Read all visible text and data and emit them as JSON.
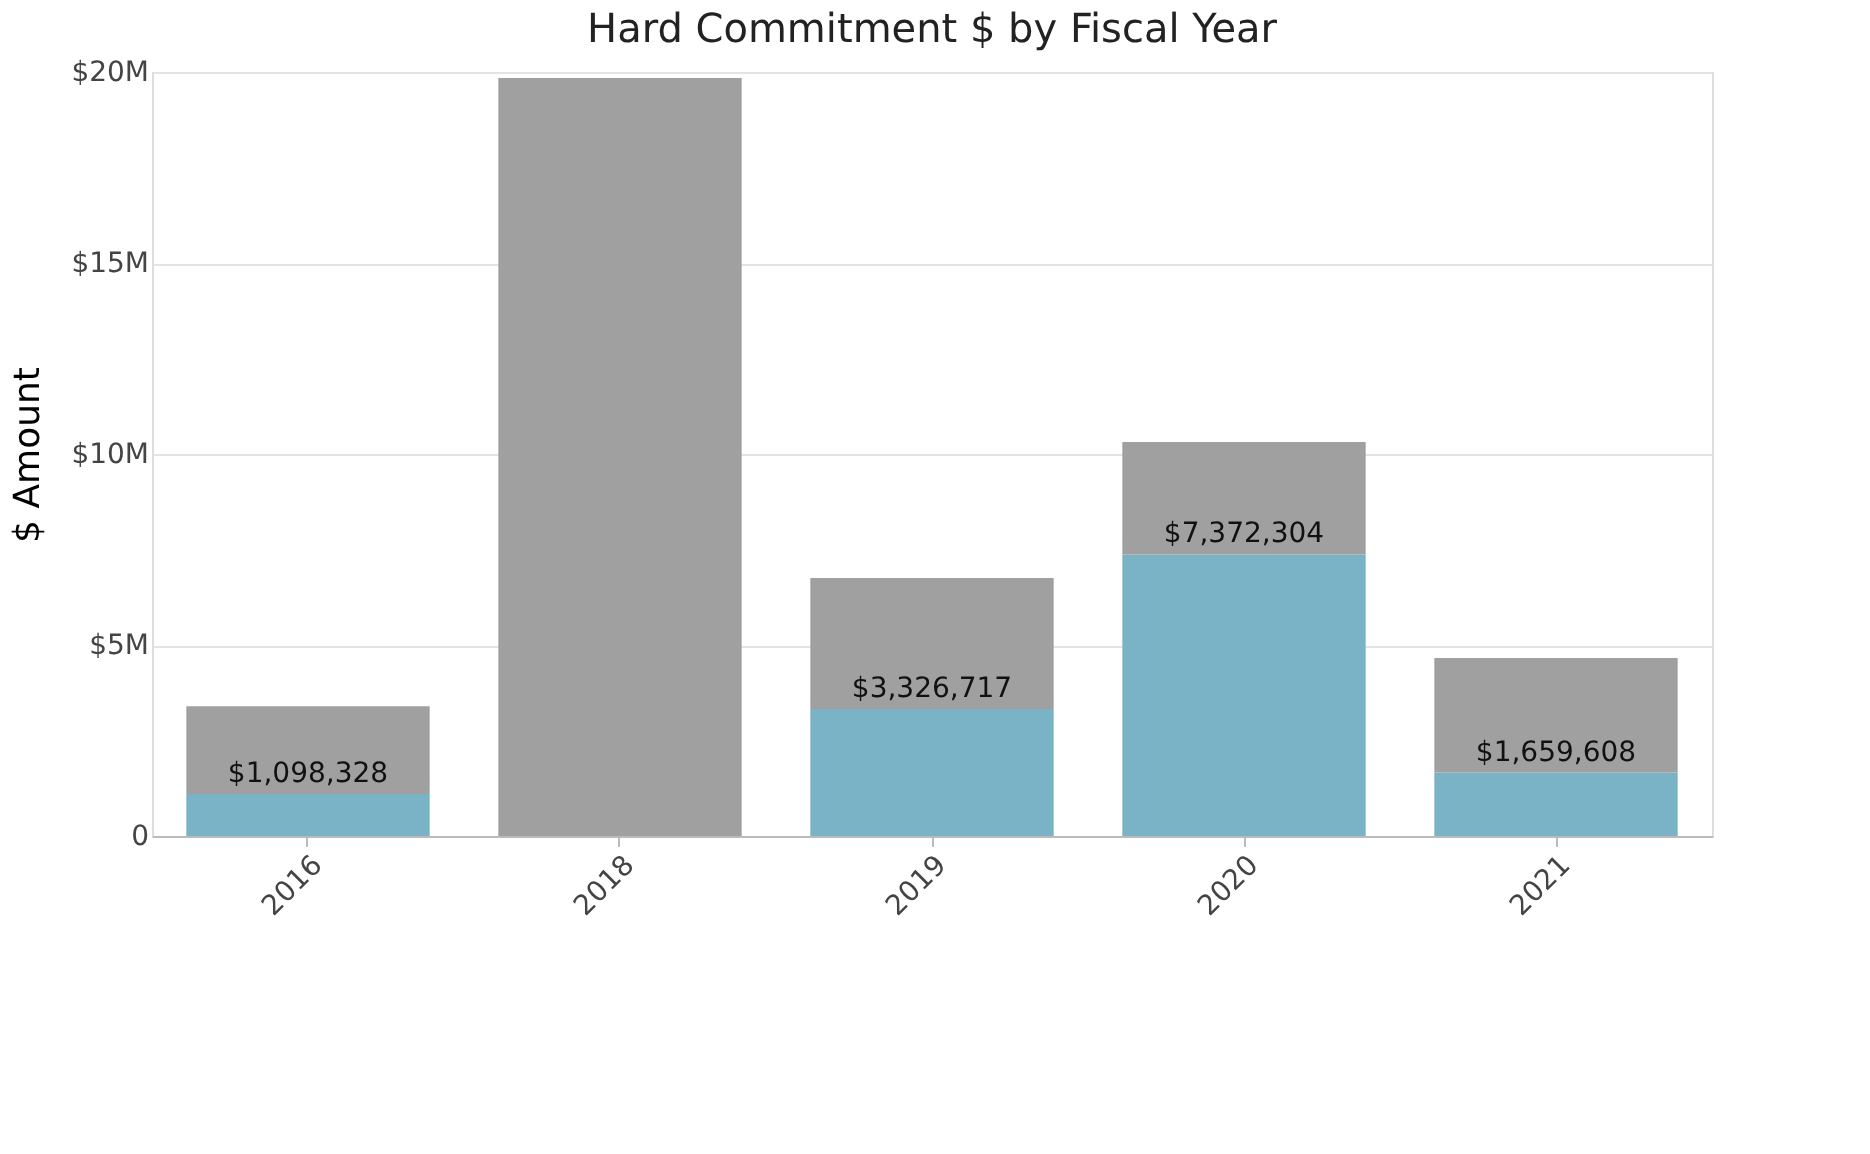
{
  "chart_data": {
    "type": "bar",
    "title": "Hard Commitment $ by Fiscal Year",
    "ylabel": "$ Amount",
    "categories": [
      "2016",
      "2018",
      "2019",
      "2020",
      "2021"
    ],
    "stacked": true,
    "series": [
      {
        "color": "#7ab3c6",
        "values": [
          1098328,
          null,
          3326717,
          7372304,
          1659608
        ],
        "value_labels": [
          "$1,098,328",
          null,
          "$3,326,717",
          "$7,372,304",
          "$1,659,608"
        ]
      },
      {
        "color": "#a0a0a0",
        "values": [
          2300000,
          19840000,
          3430000,
          2940000,
          3000000
        ]
      }
    ],
    "ylim": [
      0,
      20000000
    ],
    "yticks": [
      0,
      {
        "value": 5000000,
        "label": "$5M"
      },
      {
        "value": 10000000,
        "label": "$10M"
      },
      {
        "value": 15000000,
        "label": "$15M"
      },
      {
        "value": 20000000,
        "label": "$20M"
      }
    ],
    "grid": "y"
  }
}
